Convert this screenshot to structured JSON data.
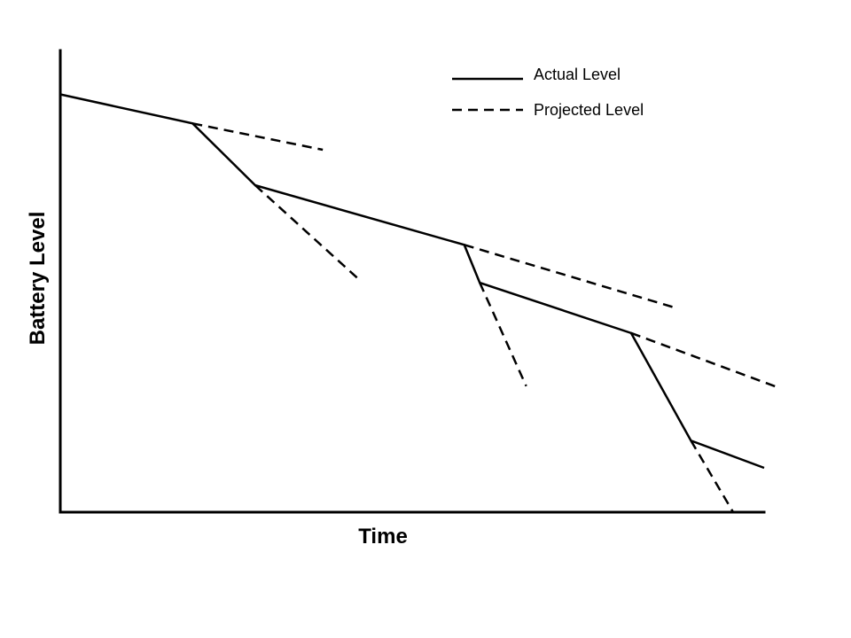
{
  "chart_data": {
    "type": "line",
    "title": "",
    "xlabel": "Time",
    "ylabel": "Battery Level",
    "xlim": [
      0,
      100
    ],
    "ylim": [
      0,
      100
    ],
    "grid": false,
    "legend_position": "top-right",
    "series": [
      {
        "name": "Actual Level",
        "style": "solid",
        "color": "#000000",
        "points": [
          [
            0,
            90.5
          ],
          [
            18.8,
            84.2
          ],
          [
            27.7,
            70.8
          ],
          [
            57.4,
            57.9
          ],
          [
            59.6,
            49.7
          ],
          [
            81.1,
            38.8
          ],
          [
            89.6,
            15.5
          ],
          [
            100,
            9.6
          ]
        ]
      },
      {
        "name": "Projected Level",
        "style": "dashed",
        "color": "#000000",
        "segments": [
          [
            [
              18.8,
              84.2
            ],
            [
              37.3,
              78.5
            ]
          ],
          [
            [
              27.7,
              70.8
            ],
            [
              42.3,
              50.6
            ]
          ],
          [
            [
              57.4,
              57.9
            ],
            [
              87.1,
              44.4
            ]
          ],
          [
            [
              59.6,
              49.7
            ],
            [
              66.2,
              27.3
            ]
          ],
          [
            [
              81.1,
              38.8
            ],
            [
              102.2,
              26.9
            ]
          ],
          [
            [
              89.6,
              15.5
            ],
            [
              95.6,
              0
            ]
          ]
        ]
      }
    ]
  }
}
